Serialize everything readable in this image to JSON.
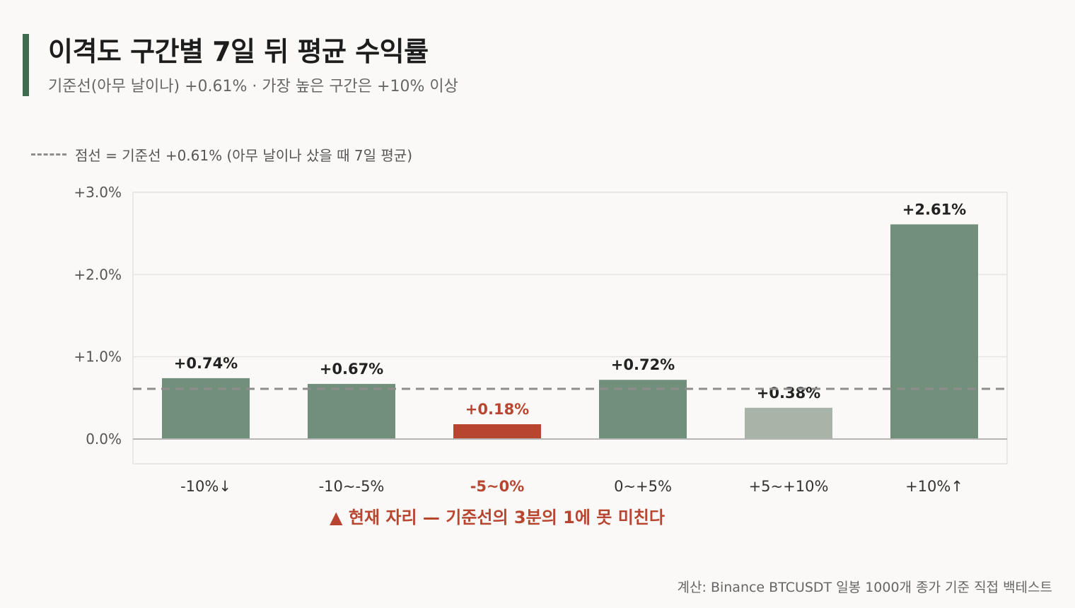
{
  "header": {
    "title": "이격도 구간별 7일 뒤 평균 수익률",
    "subtitle": "기준선(아무 날이나) +0.61% · 가장 높은 구간은 +10% 이상"
  },
  "legend": {
    "text": "점선 = 기준선 +0.61% (아무 날이나 샀을 때 7일 평균)"
  },
  "chart_data": {
    "type": "bar",
    "categories": [
      "-10%↓",
      "-10~-5%",
      "-5~0%",
      "0~+5%",
      "+5~+10%",
      "+10%↑"
    ],
    "values": [
      0.74,
      0.67,
      0.18,
      0.72,
      0.38,
      2.61
    ],
    "value_labels": [
      "+0.74%",
      "+0.67%",
      "+0.18%",
      "+0.72%",
      "+0.38%",
      "+2.61%"
    ],
    "bar_colors": [
      "#728f7b",
      "#728f7b",
      "#b8452f",
      "#728f7b",
      "#a9b4a8",
      "#728f7b"
    ],
    "label_colors": [
      "#222222",
      "#222222",
      "#b8452f",
      "#222222",
      "#222222",
      "#222222"
    ],
    "highlight_index": 2,
    "ylim": [
      0,
      3.0
    ],
    "yticks": [
      0,
      1.0,
      2.0,
      3.0
    ],
    "ytick_labels": [
      "0.0%",
      "+1.0%",
      "+2.0%",
      "+3.0%"
    ],
    "baseline": 0.61,
    "grid": true,
    "xlabel": "",
    "ylabel": ""
  },
  "annotation": {
    "text": "▲ 현재 자리 — 기준선의 3분의 1에 못 미친다"
  },
  "footer": {
    "source": "계산: Binance BTCUSDT 일봉 1000개 종가 기준 직접 백테스트"
  },
  "colors": {
    "accent": "#3f6b4f",
    "bar": "#728f7b",
    "highlight": "#b8452f",
    "muted": "#a9b4a8",
    "baseline": "#8d8d8d"
  }
}
